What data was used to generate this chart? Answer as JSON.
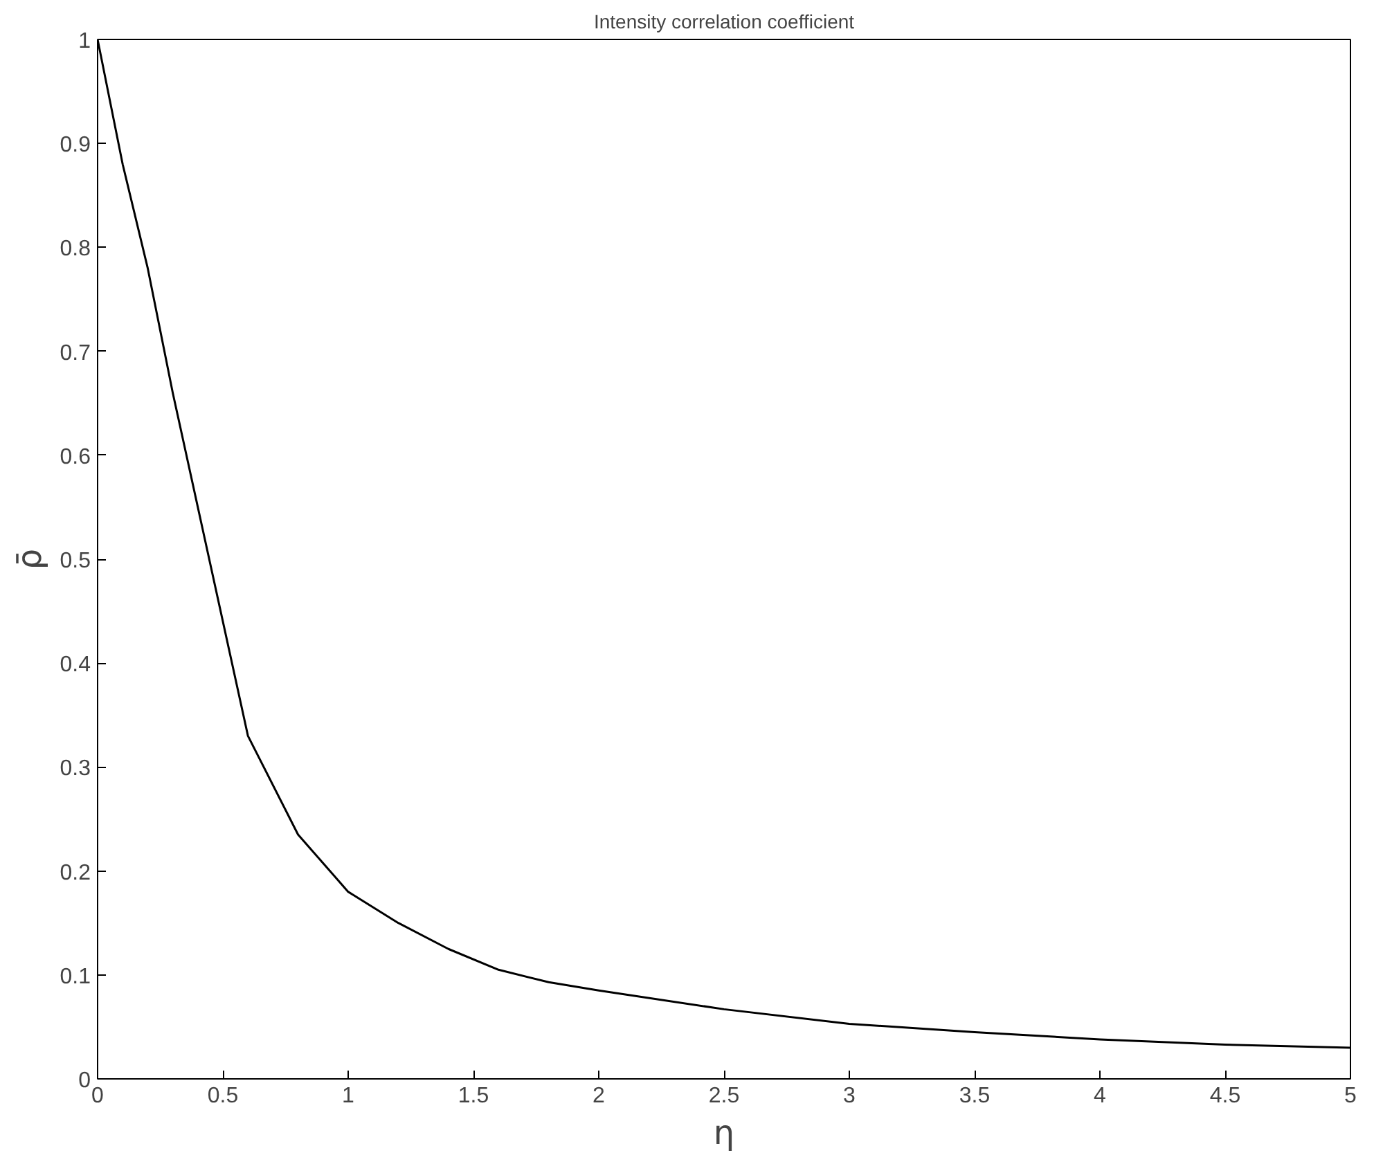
{
  "chart_data": {
    "type": "line",
    "title": "Intensity correlation coefficient",
    "xlabel": "η",
    "ylabel": "ρ̄",
    "x": [
      0,
      0.1,
      0.2,
      0.3,
      0.4,
      0.5,
      0.6,
      0.8,
      1,
      1.2,
      1.4,
      1.6,
      1.8,
      2,
      2.5,
      3,
      3.5,
      4,
      4.5,
      5
    ],
    "series": [
      {
        "color": "#000000",
        "values": [
          1,
          0.88,
          0.78,
          0.66,
          0.55,
          0.44,
          0.33,
          0.235,
          0.18,
          0.15,
          0.125,
          0.105,
          0.093,
          0.085,
          0.067,
          0.053,
          0.045,
          0.038,
          0.033,
          0.03
        ]
      }
    ],
    "xlim": [
      0,
      5
    ],
    "ylim": [
      0,
      1
    ],
    "xticks": [
      0,
      0.5,
      1,
      1.5,
      2,
      2.5,
      3,
      3.5,
      4,
      4.5,
      5
    ],
    "yticks": [
      0,
      0.1,
      0.2,
      0.3,
      0.4,
      0.5,
      0.6,
      0.7,
      0.8,
      0.9,
      1
    ],
    "grid": false,
    "marker": "none",
    "line_style": "solid"
  }
}
